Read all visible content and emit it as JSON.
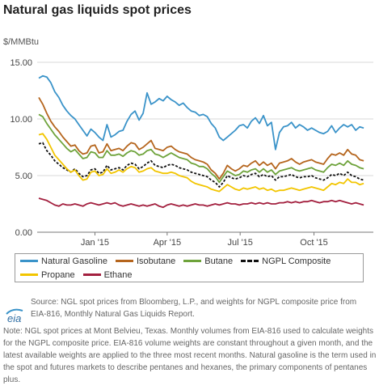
{
  "title": "Natural gas liquids spot prices",
  "unit_label": "$/MMBtu",
  "source_text": "Source: NGL spot prices from Bloomberg, L.P., and weights for NGPL composite price from EIA-816, Monthly Natural Gas Liquids Report.",
  "note_text": "Note: NGL spot prices at Mont Belvieu, Texas. Monthly volumes from EIA-816 used to calculate weights for the NGPL composite price. EIA-816 volume weights are constant throughout a given month, and the latest available weights are applied to the three most recent months. Natural gasoline is the term used in the spot and futures markets to describe pentanes and hexanes, the primary components of pentanes plus.",
  "logo_text": "eia",
  "chart_data": {
    "type": "line",
    "title": "Natural gas liquids spot prices",
    "ylabel": "$/MMBtu",
    "ylim": [
      0,
      15
    ],
    "yticks": [
      "0.00",
      "5.00",
      "10.00",
      "15.00"
    ],
    "xticks": [
      "Jan '15",
      "Apr '15",
      "Jul '15",
      "Oct '15"
    ],
    "xtick_pos": [
      45,
      135,
      226,
      318
    ],
    "xlim": [
      -27,
      392
    ],
    "grid": true,
    "legend_position": "bottom",
    "series": [
      {
        "name": "Natural Gasoline",
        "color": "#3a93c9",
        "dashed": false,
        "x": [
          -25,
          -20,
          -15,
          -10,
          -5,
          0,
          5,
          10,
          15,
          20,
          25,
          30,
          35,
          40,
          45,
          50,
          55,
          60,
          65,
          70,
          75,
          80,
          85,
          90,
          95,
          100,
          105,
          110,
          115,
          120,
          125,
          130,
          135,
          140,
          145,
          150,
          155,
          160,
          165,
          170,
          175,
          180,
          185,
          190,
          195,
          200,
          205,
          210,
          215,
          220,
          225,
          230,
          235,
          240,
          245,
          250,
          255,
          260,
          265,
          270,
          275,
          280,
          285,
          290,
          295,
          300,
          305,
          310,
          315,
          320,
          325,
          330,
          335,
          340,
          345,
          350,
          355,
          360,
          365,
          370,
          375,
          380
        ],
        "y": [
          13.6,
          13.8,
          13.7,
          13.2,
          12.4,
          11.9,
          11.2,
          10.7,
          10.3,
          10.0,
          9.5,
          9.0,
          8.5,
          9.1,
          8.8,
          8.4,
          8.1,
          9.5,
          8.4,
          8.6,
          8.9,
          9.0,
          9.8,
          10.4,
          10.7,
          9.9,
          10.5,
          12.3,
          11.3,
          11.5,
          11.8,
          11.6,
          12.0,
          11.7,
          11.5,
          11.2,
          11.4,
          11.0,
          10.7,
          10.6,
          10.3,
          10.4,
          10.2,
          9.6,
          9.2,
          8.4,
          8.1,
          8.4,
          8.7,
          9.0,
          9.4,
          9.5,
          9.2,
          9.8,
          10.1,
          9.6,
          10.3,
          9.4,
          9.7,
          7.3,
          8.8,
          9.3,
          9.4,
          9.7,
          9.2,
          9.5,
          9.3,
          9.0,
          9.2,
          9.0,
          8.8,
          8.7,
          8.9,
          9.4,
          8.8,
          9.2,
          9.5,
          9.3,
          9.5,
          9.0,
          9.3,
          9.2
        ]
      },
      {
        "name": "Isobutane",
        "color": "#b5651d",
        "dashed": false,
        "x": [
          -25,
          -20,
          -15,
          -10,
          -5,
          0,
          5,
          10,
          15,
          20,
          25,
          30,
          35,
          40,
          45,
          50,
          55,
          60,
          65,
          70,
          75,
          80,
          85,
          90,
          95,
          100,
          105,
          110,
          115,
          120,
          125,
          130,
          135,
          140,
          145,
          150,
          155,
          160,
          165,
          170,
          175,
          180,
          185,
          190,
          195,
          200,
          205,
          210,
          215,
          220,
          225,
          230,
          235,
          240,
          245,
          250,
          255,
          260,
          265,
          270,
          275,
          280,
          285,
          290,
          295,
          300,
          305,
          310,
          315,
          320,
          325,
          330,
          335,
          340,
          345,
          350,
          355,
          360,
          365,
          370,
          375,
          380
        ],
        "y": [
          11.9,
          11.3,
          10.5,
          9.8,
          9.3,
          8.9,
          8.4,
          8.0,
          7.6,
          7.7,
          7.2,
          6.9,
          7.0,
          7.6,
          7.7,
          7.0,
          7.1,
          7.8,
          7.2,
          7.3,
          7.4,
          7.2,
          7.6,
          7.9,
          7.8,
          7.3,
          7.5,
          7.8,
          8.1,
          7.4,
          7.3,
          7.2,
          7.5,
          7.6,
          7.3,
          7.1,
          7.0,
          6.9,
          6.6,
          6.4,
          6.3,
          6.2,
          6.0,
          5.5,
          5.2,
          4.7,
          5.2,
          5.9,
          5.6,
          5.4,
          5.6,
          5.9,
          5.8,
          6.1,
          6.3,
          5.9,
          6.2,
          5.9,
          6.1,
          5.6,
          6.1,
          6.2,
          6.3,
          6.5,
          6.2,
          6.0,
          6.2,
          6.3,
          6.4,
          6.2,
          6.1,
          6.0,
          6.5,
          6.9,
          6.8,
          7.0,
          6.8,
          7.3,
          6.9,
          6.8,
          6.4,
          6.3
        ]
      },
      {
        "name": "Butane",
        "color": "#6ea33b",
        "dashed": false,
        "x": [
          -25,
          -20,
          -15,
          -10,
          -5,
          0,
          5,
          10,
          15,
          20,
          25,
          30,
          35,
          40,
          45,
          50,
          55,
          60,
          65,
          70,
          75,
          80,
          85,
          90,
          95,
          100,
          105,
          110,
          115,
          120,
          125,
          130,
          135,
          140,
          145,
          150,
          155,
          160,
          165,
          170,
          175,
          180,
          185,
          190,
          195,
          200,
          205,
          210,
          215,
          220,
          225,
          230,
          235,
          240,
          245,
          250,
          255,
          260,
          265,
          270,
          275,
          280,
          285,
          290,
          295,
          300,
          305,
          310,
          315,
          320,
          325,
          330,
          335,
          340,
          345,
          350,
          355,
          360,
          365,
          370,
          375,
          380
        ],
        "y": [
          10.4,
          10.2,
          9.6,
          9.1,
          8.6,
          8.2,
          7.8,
          7.4,
          7.1,
          7.3,
          6.9,
          6.5,
          6.6,
          7.1,
          7.0,
          6.6,
          6.6,
          7.2,
          6.8,
          6.8,
          6.9,
          6.7,
          7.0,
          7.2,
          7.1,
          6.8,
          6.9,
          7.2,
          7.3,
          6.9,
          6.8,
          6.6,
          6.8,
          7.0,
          6.8,
          6.6,
          6.5,
          6.4,
          6.1,
          6.0,
          5.8,
          5.8,
          5.6,
          5.2,
          4.9,
          4.4,
          4.9,
          5.4,
          5.2,
          5.0,
          5.1,
          5.4,
          5.3,
          5.5,
          5.6,
          5.3,
          5.6,
          5.3,
          5.5,
          5.1,
          5.4,
          5.5,
          5.6,
          5.7,
          5.5,
          5.4,
          5.5,
          5.6,
          5.7,
          5.5,
          5.4,
          5.3,
          5.7,
          6.0,
          5.9,
          6.1,
          5.9,
          6.3,
          6.0,
          5.9,
          5.7,
          5.6
        ]
      },
      {
        "name": "NGPL Composite",
        "color": "#111111",
        "dashed": true,
        "x": [
          -25,
          -20,
          -15,
          -10,
          -5,
          0,
          5,
          10,
          15,
          20,
          25,
          30,
          35,
          40,
          45,
          50,
          55,
          60,
          65,
          70,
          75,
          80,
          85,
          90,
          95,
          100,
          105,
          110,
          115,
          120,
          125,
          130,
          135,
          140,
          145,
          150,
          155,
          160,
          165,
          170,
          175,
          180,
          185,
          190,
          195,
          200,
          205,
          210,
          215,
          220,
          225,
          230,
          235,
          240,
          245,
          250,
          255,
          260,
          265,
          270,
          275,
          280,
          285,
          290,
          295,
          300,
          305,
          310,
          315,
          320,
          325,
          330,
          335,
          340,
          345,
          350,
          355,
          360,
          365,
          370,
          375,
          380
        ],
        "y": [
          7.8,
          7.9,
          7.2,
          6.8,
          6.3,
          6.0,
          5.7,
          5.5,
          5.3,
          5.6,
          5.2,
          4.9,
          5.0,
          5.5,
          5.6,
          5.2,
          5.3,
          5.9,
          5.5,
          5.6,
          5.7,
          5.5,
          5.9,
          6.1,
          6.0,
          5.6,
          5.8,
          6.1,
          6.3,
          5.9,
          5.8,
          5.7,
          5.9,
          6.0,
          5.9,
          5.7,
          5.6,
          5.5,
          5.3,
          5.2,
          5.1,
          5.0,
          4.9,
          4.6,
          4.4,
          4.0,
          4.4,
          5.0,
          4.8,
          4.7,
          4.8,
          5.0,
          4.9,
          5.1,
          5.2,
          4.9,
          5.1,
          4.9,
          5.0,
          4.6,
          4.9,
          4.9,
          5.0,
          5.1,
          4.9,
          4.8,
          4.9,
          4.9,
          5.0,
          4.8,
          4.7,
          4.6,
          4.8,
          5.1,
          5.0,
          5.2,
          5.0,
          5.3,
          5.0,
          4.9,
          4.7,
          4.6
        ]
      },
      {
        "name": "Propane",
        "color": "#f2c500",
        "dashed": false,
        "x": [
          -25,
          -20,
          -15,
          -10,
          -5,
          0,
          5,
          10,
          15,
          20,
          25,
          30,
          35,
          40,
          45,
          50,
          55,
          60,
          65,
          70,
          75,
          80,
          85,
          90,
          95,
          100,
          105,
          110,
          115,
          120,
          125,
          130,
          135,
          140,
          145,
          150,
          155,
          160,
          165,
          170,
          175,
          180,
          185,
          190,
          195,
          200,
          205,
          210,
          215,
          220,
          225,
          230,
          235,
          240,
          245,
          250,
          255,
          260,
          265,
          270,
          275,
          280,
          285,
          290,
          295,
          300,
          305,
          310,
          315,
          320,
          325,
          330,
          335,
          340,
          345,
          350,
          355,
          360,
          365,
          370,
          375,
          380
        ],
        "y": [
          8.6,
          8.7,
          8.2,
          7.5,
          6.8,
          6.4,
          6.0,
          5.6,
          5.3,
          5.5,
          5.0,
          4.6,
          4.7,
          5.3,
          5.4,
          5.0,
          5.1,
          5.6,
          5.2,
          5.3,
          5.5,
          5.3,
          5.6,
          5.8,
          5.7,
          5.3,
          5.4,
          5.6,
          5.7,
          5.4,
          5.3,
          5.2,
          5.2,
          5.3,
          5.2,
          5.0,
          4.9,
          4.8,
          4.5,
          4.3,
          4.2,
          4.1,
          4.0,
          3.8,
          3.7,
          3.6,
          3.9,
          4.2,
          4.0,
          3.8,
          3.7,
          3.9,
          3.8,
          3.9,
          4.0,
          3.8,
          3.9,
          3.7,
          3.8,
          3.6,
          3.7,
          3.7,
          3.8,
          3.9,
          3.8,
          3.7,
          3.8,
          3.9,
          4.0,
          3.9,
          3.8,
          3.7,
          4.0,
          4.3,
          4.2,
          4.4,
          4.3,
          4.7,
          4.4,
          4.4,
          4.2,
          4.3
        ]
      },
      {
        "name": "Ethane",
        "color": "#a3203f",
        "dashed": false,
        "x": [
          -25,
          -20,
          -15,
          -10,
          -5,
          0,
          5,
          10,
          15,
          20,
          25,
          30,
          35,
          40,
          45,
          50,
          55,
          60,
          65,
          70,
          75,
          80,
          85,
          90,
          95,
          100,
          105,
          110,
          115,
          120,
          125,
          130,
          135,
          140,
          145,
          150,
          155,
          160,
          165,
          170,
          175,
          180,
          185,
          190,
          195,
          200,
          205,
          210,
          215,
          220,
          225,
          230,
          235,
          240,
          245,
          250,
          255,
          260,
          265,
          270,
          275,
          280,
          285,
          290,
          295,
          300,
          305,
          310,
          315,
          320,
          325,
          330,
          335,
          340,
          345,
          350,
          355,
          360,
          365,
          370,
          375,
          380
        ],
        "y": [
          3.0,
          2.9,
          2.8,
          2.6,
          2.4,
          2.3,
          2.5,
          2.4,
          2.4,
          2.5,
          2.4,
          2.3,
          2.5,
          2.6,
          2.5,
          2.4,
          2.5,
          2.6,
          2.5,
          2.6,
          2.4,
          2.3,
          2.4,
          2.5,
          2.4,
          2.3,
          2.4,
          2.3,
          2.4,
          2.5,
          2.3,
          2.2,
          2.4,
          2.5,
          2.4,
          2.3,
          2.4,
          2.3,
          2.4,
          2.5,
          2.4,
          2.4,
          2.3,
          2.4,
          2.5,
          2.4,
          2.5,
          2.6,
          2.5,
          2.5,
          2.4,
          2.5,
          2.5,
          2.6,
          2.5,
          2.6,
          2.5,
          2.6,
          2.5,
          2.5,
          2.6,
          2.6,
          2.7,
          2.6,
          2.7,
          2.6,
          2.7,
          2.7,
          2.8,
          2.7,
          2.6,
          2.7,
          2.7,
          2.8,
          2.7,
          2.8,
          2.7,
          2.6,
          2.5,
          2.6,
          2.5,
          2.4
        ]
      }
    ]
  }
}
